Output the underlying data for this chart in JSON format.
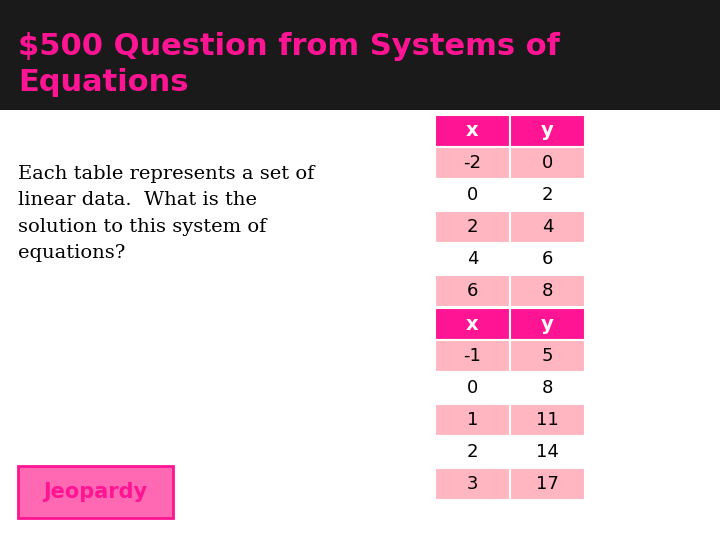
{
  "title": "$500 Question from Systems of\nEquations",
  "title_color": "#FF1493",
  "title_bg": "#1a1a1a",
  "body_bg": "#ffffff",
  "body_text": "Each table represents a set of\nlinear data.  What is the\nsolution to this system of\nequations?",
  "body_text_color": "#000000",
  "jeopardy_label": "Jeopardy",
  "jeopardy_color": "#FF1493",
  "jeopardy_bg": "#FF69B4",
  "table1_header": [
    "x",
    "y"
  ],
  "table1_data": [
    [
      -2,
      0
    ],
    [
      0,
      2
    ],
    [
      2,
      4
    ],
    [
      4,
      6
    ],
    [
      6,
      8
    ]
  ],
  "table2_header": [
    "x",
    "y"
  ],
  "table2_data": [
    [
      -1,
      5
    ],
    [
      0,
      8
    ],
    [
      1,
      11
    ],
    [
      2,
      14
    ],
    [
      3,
      17
    ]
  ],
  "header_color": "#FF1493",
  "row_color_odd": "#FFB6C1",
  "row_color_even": "#FFFFFF",
  "cell_text_color": "#000000",
  "header_text_color": "#FFFFFF"
}
